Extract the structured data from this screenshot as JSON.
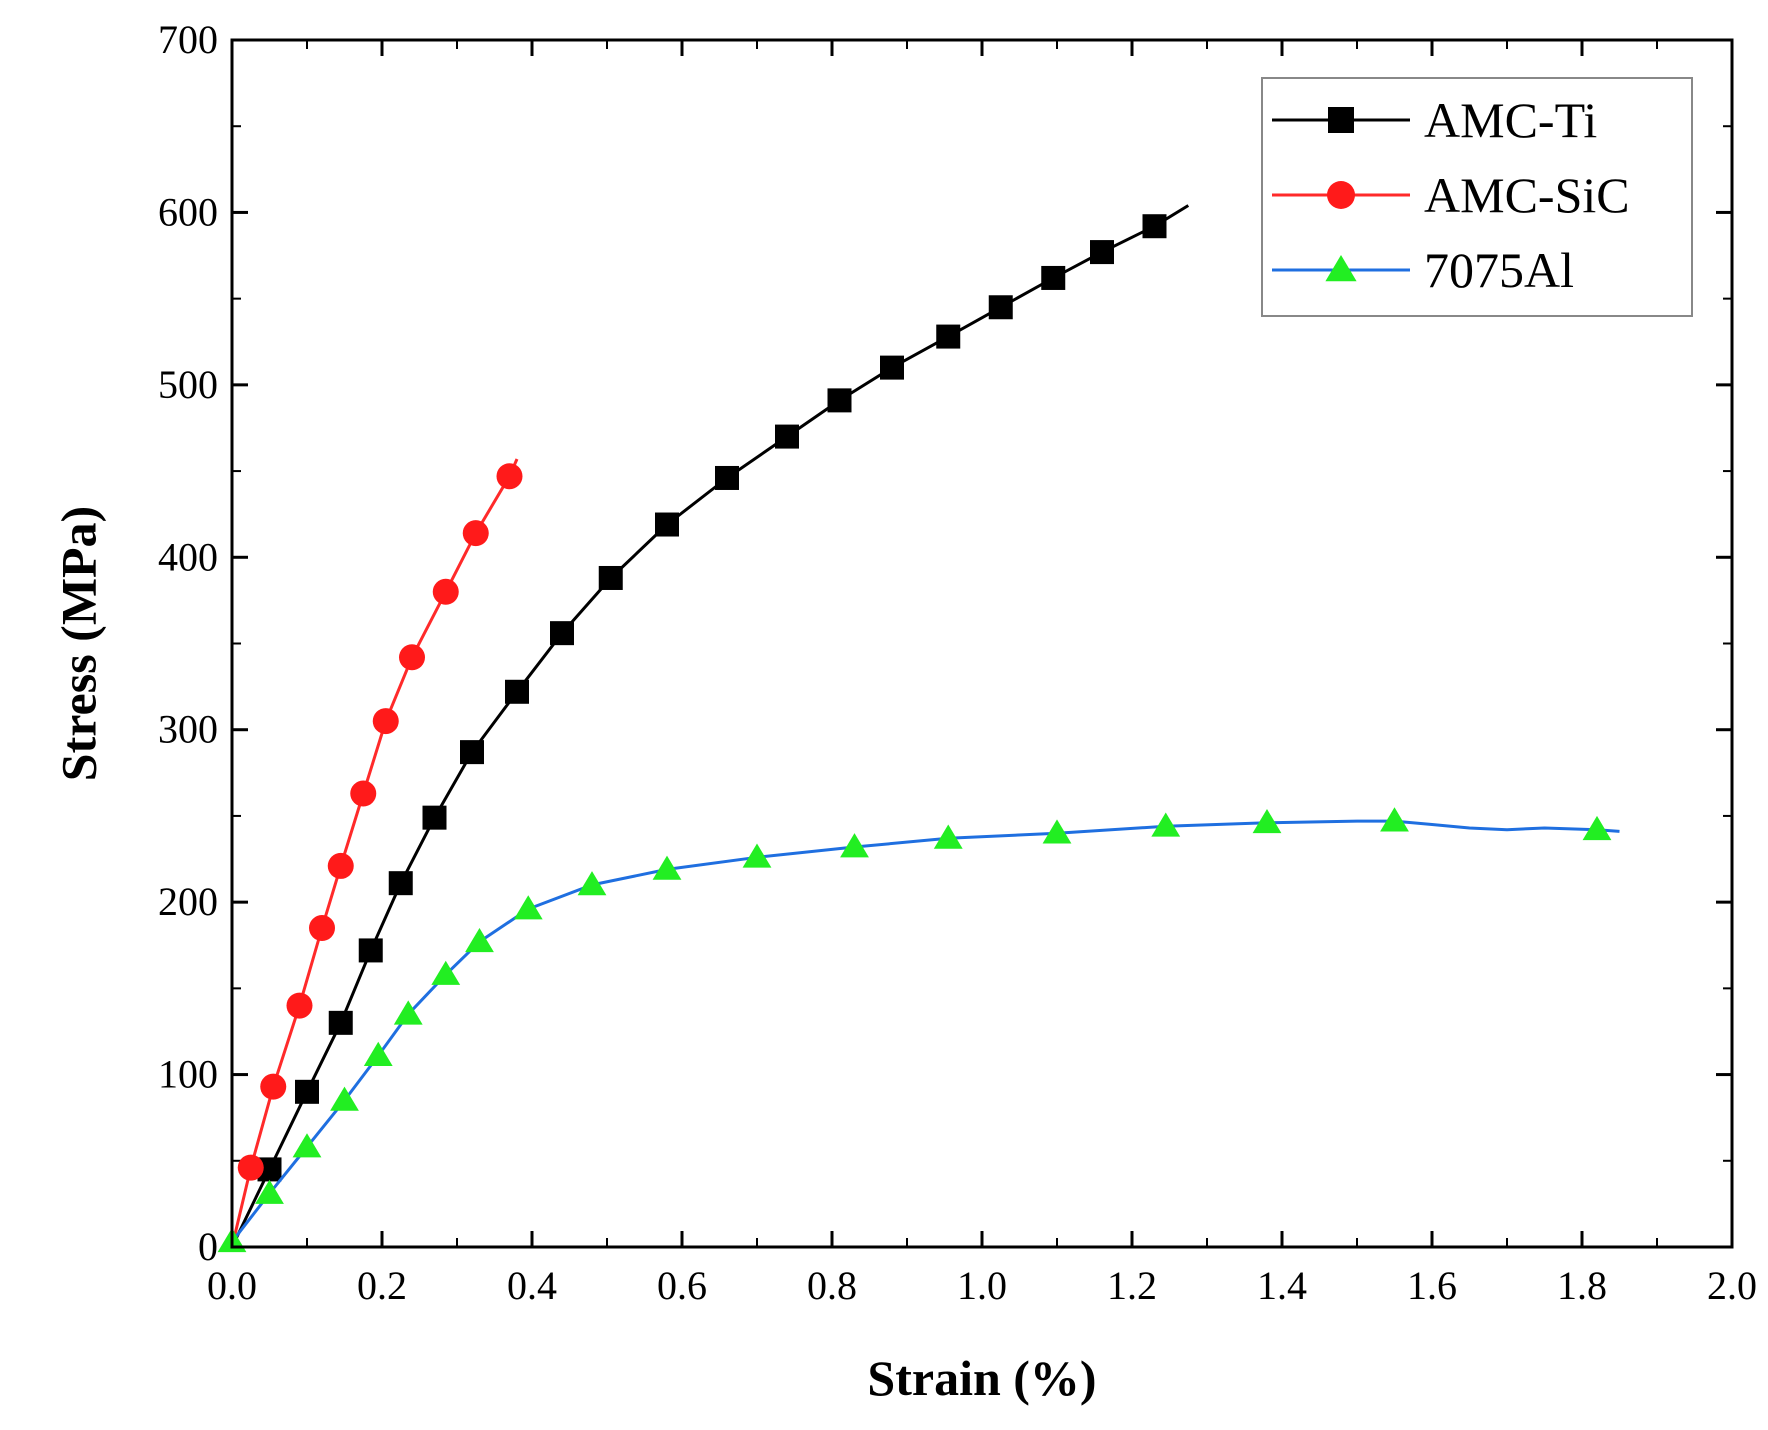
{
  "chart_data": {
    "type": "line",
    "title": "",
    "xlabel": "Strain (%)",
    "ylabel": "Stress (MPa)",
    "xlim": [
      0.0,
      2.0
    ],
    "ylim": [
      0,
      700
    ],
    "x_ticks": [
      "0.0",
      "0.2",
      "0.4",
      "0.6",
      "0.8",
      "1.0",
      "1.2",
      "1.4",
      "1.6",
      "1.8",
      "2.0"
    ],
    "y_ticks": [
      "0",
      "100",
      "200",
      "300",
      "400",
      "500",
      "600",
      "700"
    ],
    "grid": false,
    "legend_position": "top-right",
    "series": [
      {
        "name": "AMC-Ti",
        "line_color": "#000000",
        "marker": "square",
        "marker_color": "#000000",
        "line": [
          [
            0.0,
            0
          ],
          [
            0.05,
            45
          ],
          [
            0.1,
            90
          ],
          [
            0.145,
            130
          ],
          [
            0.185,
            172
          ],
          [
            0.225,
            211
          ],
          [
            0.27,
            249
          ],
          [
            0.32,
            287
          ],
          [
            0.38,
            322
          ],
          [
            0.44,
            356
          ],
          [
            0.505,
            388
          ],
          [
            0.58,
            419
          ],
          [
            0.66,
            446
          ],
          [
            0.74,
            470
          ],
          [
            0.81,
            491
          ],
          [
            0.88,
            510
          ],
          [
            0.955,
            528
          ],
          [
            1.025,
            545
          ],
          [
            1.095,
            562
          ],
          [
            1.16,
            577
          ],
          [
            1.23,
            592
          ],
          [
            1.275,
            604
          ]
        ],
        "markers": [
          [
            0.05,
            45
          ],
          [
            0.1,
            90
          ],
          [
            0.145,
            130
          ],
          [
            0.185,
            172
          ],
          [
            0.225,
            211
          ],
          [
            0.27,
            249
          ],
          [
            0.32,
            287
          ],
          [
            0.38,
            322
          ],
          [
            0.44,
            356
          ],
          [
            0.505,
            388
          ],
          [
            0.58,
            419
          ],
          [
            0.66,
            446
          ],
          [
            0.74,
            470
          ],
          [
            0.81,
            491
          ],
          [
            0.88,
            510
          ],
          [
            0.955,
            528
          ],
          [
            1.025,
            545
          ],
          [
            1.095,
            562
          ],
          [
            1.16,
            577
          ],
          [
            1.23,
            592
          ]
        ]
      },
      {
        "name": "AMC-SiC",
        "line_color": "#ff2a2a",
        "marker": "circle",
        "marker_color": "#ff1a1a",
        "line": [
          [
            0.0,
            0
          ],
          [
            0.025,
            46
          ],
          [
            0.055,
            93
          ],
          [
            0.09,
            140
          ],
          [
            0.12,
            185
          ],
          [
            0.145,
            221
          ],
          [
            0.175,
            263
          ],
          [
            0.205,
            305
          ],
          [
            0.24,
            342
          ],
          [
            0.285,
            380
          ],
          [
            0.325,
            414
          ],
          [
            0.37,
            447
          ],
          [
            0.38,
            457
          ]
        ],
        "markers": [
          [
            0.025,
            46
          ],
          [
            0.055,
            93
          ],
          [
            0.09,
            140
          ],
          [
            0.12,
            185
          ],
          [
            0.145,
            221
          ],
          [
            0.175,
            263
          ],
          [
            0.205,
            305
          ],
          [
            0.24,
            342
          ],
          [
            0.285,
            380
          ],
          [
            0.325,
            414
          ],
          [
            0.37,
            447
          ]
        ]
      },
      {
        "name": "7075Al",
        "line_color": "#1f6fe0",
        "marker": "triangle",
        "marker_color": "#22ee22",
        "line": [
          [
            0.0,
            3
          ],
          [
            0.05,
            31
          ],
          [
            0.1,
            58
          ],
          [
            0.15,
            85
          ],
          [
            0.195,
            111
          ],
          [
            0.235,
            135
          ],
          [
            0.285,
            158
          ],
          [
            0.33,
            177
          ],
          [
            0.395,
            196
          ],
          [
            0.48,
            210
          ],
          [
            0.58,
            219
          ],
          [
            0.7,
            226
          ],
          [
            0.83,
            232
          ],
          [
            0.955,
            237
          ],
          [
            1.1,
            240
          ],
          [
            1.245,
            244
          ],
          [
            1.38,
            246
          ],
          [
            1.5,
            247
          ],
          [
            1.55,
            247
          ],
          [
            1.6,
            245
          ],
          [
            1.65,
            243
          ],
          [
            1.7,
            242
          ],
          [
            1.75,
            243
          ],
          [
            1.82,
            242
          ],
          [
            1.85,
            241
          ]
        ],
        "markers": [
          [
            0.0,
            3
          ],
          [
            0.05,
            31
          ],
          [
            0.1,
            58
          ],
          [
            0.15,
            85
          ],
          [
            0.195,
            111
          ],
          [
            0.235,
            135
          ],
          [
            0.285,
            158
          ],
          [
            0.33,
            177
          ],
          [
            0.395,
            196
          ],
          [
            0.48,
            210
          ],
          [
            0.58,
            219
          ],
          [
            0.7,
            226
          ],
          [
            0.83,
            232
          ],
          [
            0.955,
            237
          ],
          [
            1.1,
            240
          ],
          [
            1.245,
            244
          ],
          [
            1.38,
            246
          ],
          [
            1.55,
            247
          ],
          [
            1.82,
            242
          ]
        ]
      }
    ]
  }
}
